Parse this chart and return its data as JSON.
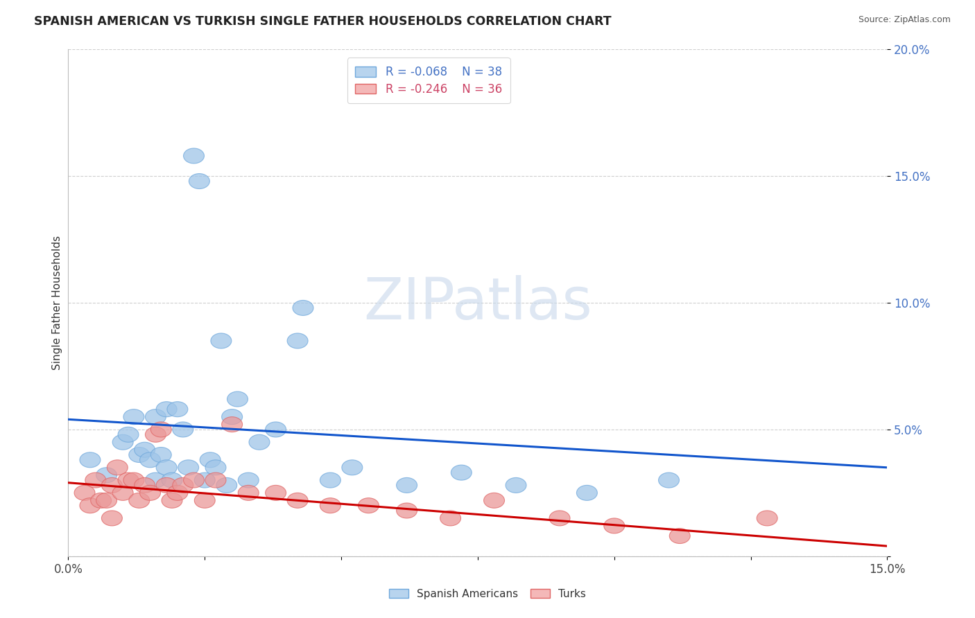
{
  "title": "SPANISH AMERICAN VS TURKISH SINGLE FATHER HOUSEHOLDS CORRELATION CHART",
  "source": "Source: ZipAtlas.com",
  "ylabel": "Single Father Households",
  "legend_labels": [
    "Spanish Americans",
    "Turks"
  ],
  "watermark": "ZIPatlas",
  "blue_color": "#9fc5e8",
  "pink_color": "#ea9999",
  "blue_edge_color": "#6fa8dc",
  "pink_edge_color": "#e06666",
  "blue_line_color": "#1155cc",
  "pink_line_color": "#cc0000",
  "background_color": "#ffffff",
  "grid_color": "#b0b0b0",
  "xlim": [
    0.0,
    0.15
  ],
  "ylim": [
    0.0,
    0.2
  ],
  "yticks": [
    0.0,
    0.05,
    0.1,
    0.15,
    0.2
  ],
  "ytick_labels": [
    "",
    "5.0%",
    "10.0%",
    "15.0%",
    "20.0%"
  ],
  "xticks": [
    0.0,
    0.025,
    0.05,
    0.075,
    0.1,
    0.125,
    0.15
  ],
  "blue_line_x0": 0.0,
  "blue_line_y0": 0.054,
  "blue_line_x1": 0.15,
  "blue_line_y1": 0.035,
  "pink_line_x0": 0.0,
  "pink_line_y0": 0.029,
  "pink_line_x1": 0.15,
  "pink_line_y1": 0.004,
  "blue_scatter_x": [
    0.004,
    0.007,
    0.01,
    0.011,
    0.012,
    0.013,
    0.014,
    0.015,
    0.016,
    0.016,
    0.017,
    0.018,
    0.018,
    0.019,
    0.02,
    0.021,
    0.022,
    0.023,
    0.024,
    0.025,
    0.026,
    0.027,
    0.028,
    0.029,
    0.03,
    0.031,
    0.033,
    0.035,
    0.038,
    0.042,
    0.043,
    0.048,
    0.052,
    0.062,
    0.072,
    0.082,
    0.095,
    0.11
  ],
  "blue_scatter_y": [
    0.038,
    0.032,
    0.045,
    0.048,
    0.055,
    0.04,
    0.042,
    0.038,
    0.03,
    0.055,
    0.04,
    0.058,
    0.035,
    0.03,
    0.058,
    0.05,
    0.035,
    0.158,
    0.148,
    0.03,
    0.038,
    0.035,
    0.085,
    0.028,
    0.055,
    0.062,
    0.03,
    0.045,
    0.05,
    0.085,
    0.098,
    0.03,
    0.035,
    0.028,
    0.033,
    0.028,
    0.025,
    0.03
  ],
  "pink_scatter_x": [
    0.003,
    0.004,
    0.005,
    0.006,
    0.007,
    0.008,
    0.008,
    0.009,
    0.01,
    0.011,
    0.012,
    0.013,
    0.014,
    0.015,
    0.016,
    0.017,
    0.018,
    0.019,
    0.02,
    0.021,
    0.023,
    0.025,
    0.027,
    0.03,
    0.033,
    0.038,
    0.042,
    0.048,
    0.055,
    0.062,
    0.07,
    0.078,
    0.09,
    0.1,
    0.112,
    0.128
  ],
  "pink_scatter_y": [
    0.025,
    0.02,
    0.03,
    0.022,
    0.022,
    0.028,
    0.015,
    0.035,
    0.025,
    0.03,
    0.03,
    0.022,
    0.028,
    0.025,
    0.048,
    0.05,
    0.028,
    0.022,
    0.025,
    0.028,
    0.03,
    0.022,
    0.03,
    0.052,
    0.025,
    0.025,
    0.022,
    0.02,
    0.02,
    0.018,
    0.015,
    0.022,
    0.015,
    0.012,
    0.008,
    0.015
  ]
}
